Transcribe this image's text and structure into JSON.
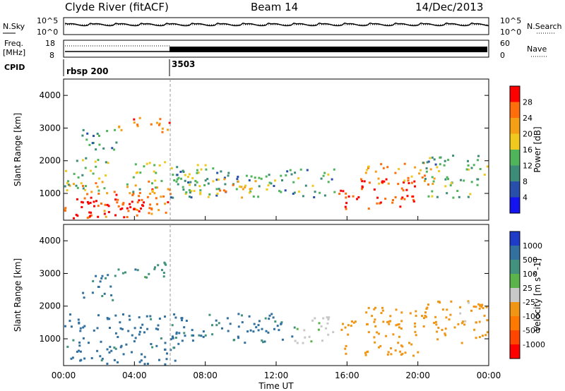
{
  "header": {
    "station": "Clyde River (fitACF)",
    "beam": "Beam 14",
    "date": "14/Dec/2013"
  },
  "noise_panel": {
    "left_label": "N.Sky",
    "left_ticks": [
      "10^5",
      "10^0"
    ],
    "right_ticks": [
      "10^5",
      "10^0"
    ],
    "right_label": "N.Search"
  },
  "freq_panel": {
    "label_line1": "Freq.",
    "label_line2": "[MHz]",
    "left_ticks": [
      "18",
      "8"
    ],
    "right_ticks": [
      "60",
      "0"
    ],
    "right_label": "Nave"
  },
  "cpid_panel": {
    "label": "CPID",
    "segments": [
      {
        "name": "rbsp 200",
        "start_hour": 0
      },
      {
        "name": "3503",
        "start_hour": 6.0
      }
    ]
  },
  "colors": {
    "power_scale": [
      "#1414f0",
      "#2850aa",
      "#3c8c78",
      "#50b45a",
      "#f0c81e",
      "#f5a014",
      "#ff6e0a",
      "#ff0000"
    ],
    "velocity_scale": [
      "#1e3cc8",
      "#3270a0",
      "#41917d",
      "#5ab44b",
      "#c8c8c8",
      "#f09614",
      "#ff7800",
      "#ff4600",
      "#ff0000"
    ]
  },
  "chart_data": [
    {
      "type": "heatmap",
      "panel": "power",
      "ylabel": "Slant Range [km]",
      "yticks": [
        "1000",
        "2000",
        "3000",
        "4000"
      ],
      "ylim": [
        180,
        4500
      ],
      "xlim": [
        0,
        24
      ],
      "colorbar_label": "Power [dB]",
      "colorbar_ticks": [
        "4",
        "8",
        "12",
        "16",
        "20",
        "24",
        "28"
      ],
      "colorbar_range": [
        0,
        30
      ],
      "regions": [
        {
          "t0": 0.0,
          "t1": 6.0,
          "r0": 200,
          "r1": 1400,
          "level": 24
        },
        {
          "t0": 0.5,
          "t1": 4.5,
          "r0": 200,
          "r1": 900,
          "level": 28
        },
        {
          "t0": 0.0,
          "t1": 2.5,
          "r0": 1100,
          "r1": 2200,
          "level": 14
        },
        {
          "t0": 1.0,
          "t1": 3.0,
          "r0": 2200,
          "r1": 3000,
          "level": 10
        },
        {
          "t0": 3.0,
          "t1": 6.0,
          "r0": 2900,
          "r1": 3400,
          "level": 24
        },
        {
          "t0": 3.5,
          "t1": 8.0,
          "r0": 1000,
          "r1": 2000,
          "level": 14
        },
        {
          "t0": 6.0,
          "t1": 15.5,
          "r0": 900,
          "r1": 1800,
          "level": 11
        },
        {
          "t0": 8.5,
          "t1": 11.0,
          "r0": 900,
          "r1": 1500,
          "level": 20
        },
        {
          "t0": 15.5,
          "t1": 20.0,
          "r0": 500,
          "r1": 1500,
          "level": 28
        },
        {
          "t0": 17.0,
          "t1": 21.0,
          "r0": 1300,
          "r1": 2000,
          "level": 22
        },
        {
          "t0": 20.0,
          "t1": 24.0,
          "r0": 900,
          "r1": 2200,
          "level": 12
        }
      ]
    },
    {
      "type": "heatmap",
      "panel": "velocity",
      "ylabel": "Slant Range [km]",
      "yticks": [
        "1000",
        "2000",
        "3000",
        "4000"
      ],
      "ylim": [
        180,
        4500
      ],
      "xlim": [
        0,
        24
      ],
      "xticks": [
        "00:00",
        "04:00",
        "08:00",
        "12:00",
        "16:00",
        "20:00",
        "00:00"
      ],
      "xlabel": "Time UT",
      "colorbar_label": "Velocity [m s^-1]",
      "colorbar_ticks": [
        "1000",
        "500",
        "100",
        "25",
        "-25",
        "-100",
        "-500",
        "-1000"
      ],
      "regions": [
        {
          "t0": 0.0,
          "t1": 6.5,
          "r0": 200,
          "r1": 1800,
          "level": 180
        },
        {
          "t0": 1.0,
          "t1": 3.0,
          "r0": 2200,
          "r1": 3000,
          "level": 120
        },
        {
          "t0": 3.0,
          "t1": 6.0,
          "r0": 2900,
          "r1": 3400,
          "level": 60
        },
        {
          "t0": 6.0,
          "t1": 13.0,
          "r0": 900,
          "r1": 1800,
          "level": 150
        },
        {
          "t0": 13.0,
          "t1": 15.5,
          "r0": 900,
          "r1": 1700,
          "level": -60
        },
        {
          "t0": 15.5,
          "t1": 20.0,
          "r0": 500,
          "r1": 1600,
          "level": -300
        },
        {
          "t0": 17.0,
          "t1": 21.0,
          "r0": 1400,
          "r1": 2000,
          "level": -250
        },
        {
          "t0": 20.0,
          "t1": 24.0,
          "r0": 900,
          "r1": 2200,
          "level": -180
        }
      ]
    }
  ]
}
